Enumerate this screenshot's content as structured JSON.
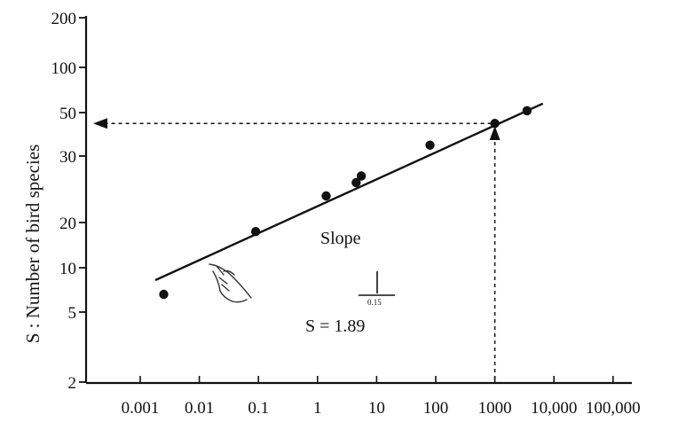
{
  "chart_data": {
    "type": "scatter",
    "title": "",
    "xlabel": "",
    "ylabel": "S : Number of bird species",
    "x_ticks": [
      "0.001",
      "0.01",
      "0.1",
      "1",
      "10",
      "100",
      "1000",
      "10,000",
      "100,000"
    ],
    "y_ticks": [
      "2",
      "5",
      "10",
      "20",
      "30",
      "50",
      "100",
      "200"
    ],
    "series": [
      {
        "points": [
          {
            "x": 0.0025,
            "y": 7
          },
          {
            "x": 0.09,
            "y": 18
          },
          {
            "x": 1.4,
            "y": 24
          },
          {
            "x": 4.5,
            "y": 26
          },
          {
            "x": 5.5,
            "y": 27
          },
          {
            "x": 80,
            "y": 35
          },
          {
            "x": 1000,
            "y": 45
          },
          {
            "x": 3500,
            "y": 52
          }
        ]
      }
    ],
    "fit_line": {
      "x_start": 0.0018,
      "y_start": 8.6,
      "x_end": 6500,
      "y_end": 60
    },
    "reference": {
      "x": 1000,
      "y": 45
    },
    "annotations": {
      "slope_label": "Slope",
      "slope_numerator": "1",
      "slope_denominator": "0.15",
      "equation": "S = 1.89"
    },
    "grid": false,
    "scale": "logarithmic-style tick spacing"
  }
}
